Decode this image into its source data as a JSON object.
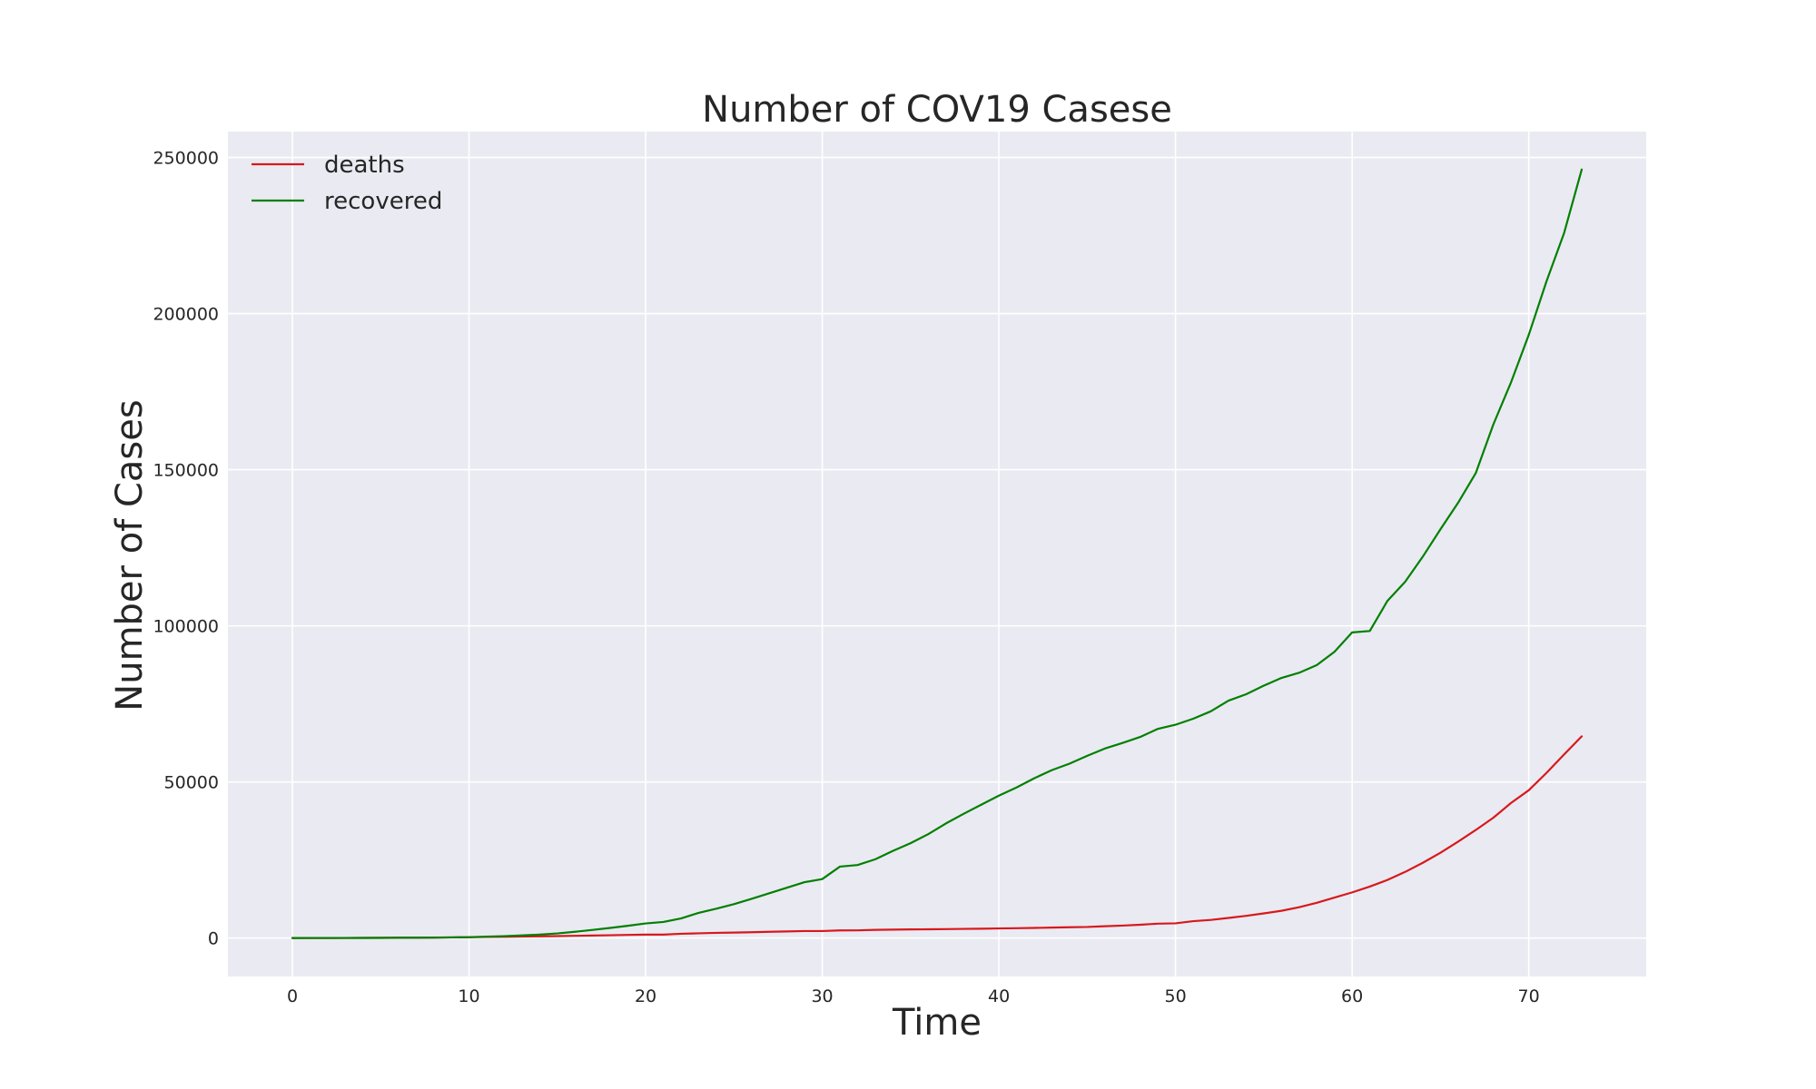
{
  "chart_data": {
    "type": "line",
    "title": "Number of COV19 Casese",
    "xlabel": "Time",
    "ylabel": "Number of Cases",
    "xlim": [
      -3.65,
      76.65
    ],
    "ylim": [
      -12300,
      258300
    ],
    "xticks": [
      0,
      10,
      20,
      30,
      40,
      50,
      60,
      70
    ],
    "yticks": [
      0,
      50000,
      100000,
      150000,
      200000,
      250000
    ],
    "grid": true,
    "legend_position": "top-left",
    "background_color": "#eaeaf2",
    "x": [
      0,
      1,
      2,
      3,
      4,
      5,
      6,
      7,
      8,
      9,
      10,
      11,
      12,
      13,
      14,
      15,
      16,
      17,
      18,
      19,
      20,
      21,
      22,
      23,
      24,
      25,
      26,
      27,
      28,
      29,
      30,
      31,
      32,
      33,
      34,
      35,
      36,
      37,
      38,
      39,
      40,
      41,
      42,
      43,
      44,
      45,
      46,
      47,
      48,
      49,
      50,
      51,
      52,
      53,
      54,
      55,
      56,
      57,
      58,
      59,
      60,
      61,
      62,
      63,
      64,
      65,
      66,
      67,
      68,
      69,
      70,
      71,
      72,
      73
    ],
    "series": [
      {
        "name": "deaths",
        "color": "#d7191c",
        "values": [
          17,
          18,
          26,
          42,
          56,
          82,
          131,
          133,
          171,
          213,
          259,
          362,
          426,
          492,
          564,
          634,
          719,
          806,
          906,
          1013,
          1113,
          1118,
          1371,
          1523,
          1666,
          1770,
          1868,
          2007,
          2122,
          2247,
          2251,
          2458,
          2469,
          2629,
          2708,
          2770,
          2814,
          2872,
          2941,
          2996,
          3085,
          3160,
          3254,
          3348,
          3460,
          3558,
          3803,
          3996,
          4262,
          4615,
          4720,
          5404,
          5819,
          6440,
          7126,
          7905,
          8733,
          9867,
          11299,
          12973,
          14623,
          16497,
          18615,
          21181,
          24103,
          27324,
          30885,
          34614,
          38566,
          43291,
          47333,
          52876,
          58787,
          64606
        ]
      },
      {
        "name": "recovered",
        "color": "#008000",
        "values": [
          28,
          30,
          36,
          39,
          52,
          61,
          107,
          126,
          143,
          222,
          284,
          472,
          623,
          852,
          1124,
          1487,
          2011,
          2616,
          3244,
          3946,
          4683,
          5150,
          6295,
          8058,
          9395,
          10865,
          12583,
          14352,
          16121,
          17898,
          18890,
          22886,
          23394,
          25227,
          27905,
          30384,
          33277,
          36711,
          39782,
          42716,
          45602,
          48228,
          51170,
          53796,
          55865,
          58358,
          60694,
          62494,
          64404,
          67003,
          68324,
          70251,
          72624,
          76034,
          78088,
          80840,
          83312,
          84975,
          87420,
          91692,
          97899,
          98351,
          108000,
          114092,
          122150,
          130915,
          139415,
          148910,
          164566,
          178034,
          193177,
          210263,
          225796,
          246152
        ]
      }
    ]
  }
}
